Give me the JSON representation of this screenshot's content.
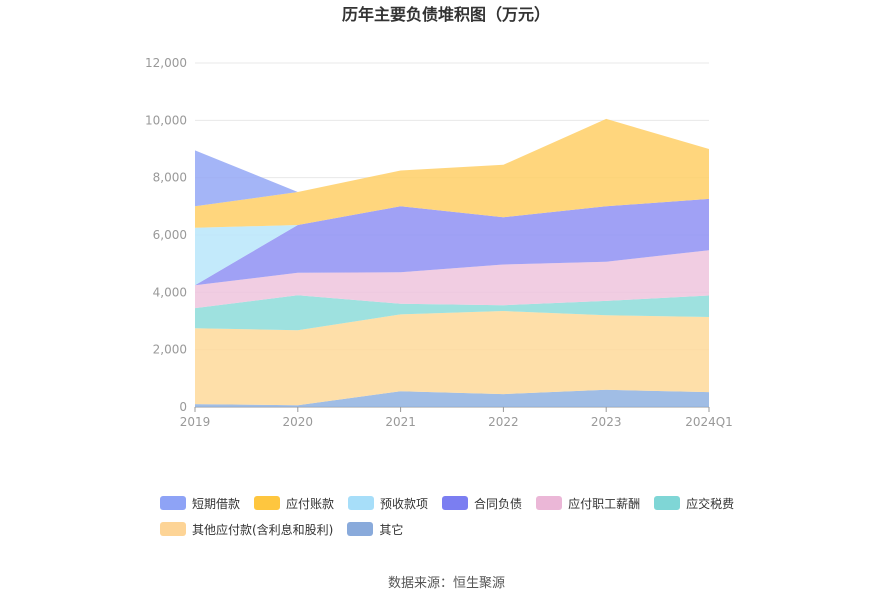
{
  "chart_data": {
    "type": "area",
    "stacked": true,
    "title": "历年主要负债堆积图（万元）",
    "categories": [
      "2019",
      "2020",
      "2021",
      "2022",
      "2023",
      "2024Q1"
    ],
    "ylim": [
      0,
      12000
    ],
    "yticks": [
      0,
      2000,
      4000,
      6000,
      8000,
      10000,
      12000
    ],
    "ytick_labels": [
      "0",
      "2,000",
      "4,000",
      "6,000",
      "8,000",
      "10,000",
      "12,000"
    ],
    "grid": true,
    "legend_position": "bottom",
    "series": [
      {
        "name": "其它",
        "color": "#8fb1e0",
        "values": [
          100,
          60,
          550,
          450,
          600,
          520
        ]
      },
      {
        "name": "其他应付款(含利息和股利)",
        "color": "#fed99a",
        "values": [
          2650,
          2620,
          2680,
          2900,
          2600,
          2620
        ]
      },
      {
        "name": "应交税费",
        "color": "#8ddcd9",
        "values": [
          700,
          1220,
          370,
          200,
          500,
          750
        ]
      },
      {
        "name": "应付职工薪酬",
        "color": "#eec4dd",
        "values": [
          800,
          780,
          1100,
          1420,
          1370,
          1580
        ]
      },
      {
        "name": "合同负债",
        "color": "#8f91f3",
        "values": [
          0,
          1670,
          2300,
          1650,
          1930,
          1790
        ]
      },
      {
        "name": "预收款项",
        "color": "#b8e6fa",
        "values": [
          2000,
          0,
          0,
          0,
          0,
          0
        ]
      },
      {
        "name": "应付账款",
        "color": "#ffcf66",
        "values": [
          750,
          1150,
          1250,
          1830,
          3050,
          1740
        ]
      },
      {
        "name": "短期借款",
        "color": "#94a8f6",
        "values": [
          1950,
          0,
          0,
          0,
          0,
          0
        ]
      }
    ]
  },
  "legend": [
    {
      "name": "短期借款",
      "color": "#8ea3f6"
    },
    {
      "name": "应付账款",
      "color": "#fec63f"
    },
    {
      "name": "预收款项",
      "color": "#a7def9"
    },
    {
      "name": "合同负债",
      "color": "#7b7ef1"
    },
    {
      "name": "应付职工薪酬",
      "color": "#ebb7d7"
    },
    {
      "name": "应交税费",
      "color": "#7fd6d6"
    },
    {
      "name": "其他应付款(含利息和股利)",
      "color": "#fdd496"
    },
    {
      "name": "其它",
      "color": "#89aadb"
    }
  ],
  "source": "数据来源：恒生聚源"
}
